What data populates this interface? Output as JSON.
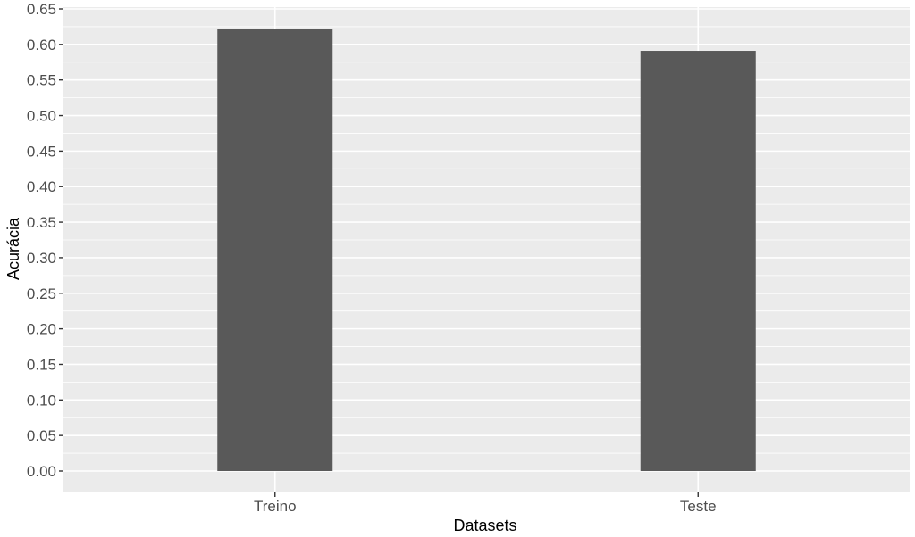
{
  "chart_data": {
    "type": "bar",
    "title": "",
    "xlabel": "Datasets",
    "ylabel": "Acurácia",
    "categories": [
      "Treino",
      "Teste"
    ],
    "values": [
      0.622,
      0.591
    ],
    "ylim": [
      0,
      0.65
    ],
    "yticks": [
      "0.00",
      "0.05",
      "0.10",
      "0.15",
      "0.20",
      "0.25",
      "0.30",
      "0.35",
      "0.40",
      "0.45",
      "0.50",
      "0.55",
      "0.60",
      "0.65"
    ],
    "grid": true,
    "legend": "none",
    "colors": {
      "panel": "#ebebeb",
      "grid": "#ffffff",
      "bar": "#595959",
      "tick_text": "#4d4d4d",
      "title_text": "#000000"
    }
  }
}
